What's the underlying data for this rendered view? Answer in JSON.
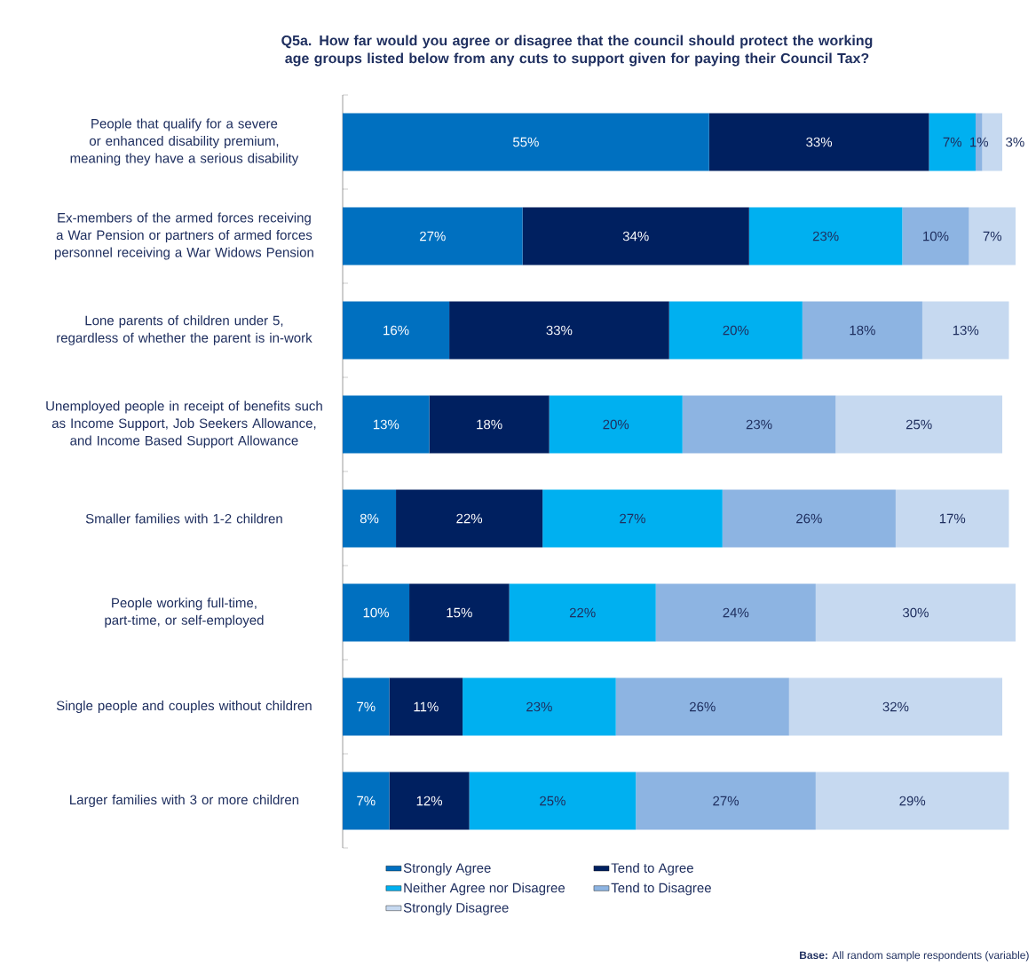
{
  "chart_data": {
    "type": "bar",
    "orientation": "horizontal",
    "stacked": true,
    "title": "Q5a. How far would you agree or disagree that the council should protect the working age groups listed below from any cuts to support given for paying their Council Tax?",
    "categories": [
      "People that qualify for a severe or enhanced disability premium, meaning they have a serious disability",
      "Ex-members of the armed forces receiving a War Pension or partners of armed forces personnel receiving a War Widows Pension",
      "Lone parents of children under 5, regardless of whether the parent is in-work",
      "Unemployed people in receipt of benefits such as Income Support, Job Seekers Allowance, and Income Based Support Allowance",
      "Smaller families with 1-2 children",
      "People working full-time, part-time, or self-employed",
      "Single people and couples without children",
      "Larger families with 3 or more children"
    ],
    "series": [
      {
        "name": "Strongly Agree",
        "color": "#0070c0",
        "values": [
          55,
          27,
          16,
          13,
          8,
          10,
          7,
          7
        ],
        "value_labels": [
          "55%",
          "27%",
          "16%",
          "13%",
          "8%",
          "10%",
          "7%",
          "7%"
        ]
      },
      {
        "name": "Tend to Agree",
        "color": "#002060",
        "values": [
          33,
          34,
          33,
          18,
          22,
          15,
          11,
          12
        ],
        "value_labels": [
          "33%",
          "34%",
          "33%",
          "18%",
          "22%",
          "15%",
          "11%",
          "12%"
        ]
      },
      {
        "name": "Neither Agree nor Disagree",
        "color": "#00b0f0",
        "values": [
          7,
          23,
          20,
          20,
          27,
          22,
          23,
          25
        ],
        "value_labels": [
          "7%",
          "23%",
          "20%",
          "20%",
          "27%",
          "22%",
          "23%",
          "25%"
        ]
      },
      {
        "name": "Tend to Disagree",
        "color": "#8db4e2",
        "values": [
          1,
          10,
          18,
          23,
          26,
          24,
          26,
          27
        ],
        "value_labels": [
          "1%",
          "10%",
          "18%",
          "23%",
          "26%",
          "24%",
          "26%",
          "27%"
        ]
      },
      {
        "name": "Strongly Disagree",
        "color": "#c6d9f0",
        "values": [
          3,
          7,
          13,
          25,
          17,
          30,
          32,
          29
        ],
        "value_labels": [
          "3%",
          "7%",
          "13%",
          "25%",
          "17%",
          "30%",
          "32%",
          "29%"
        ]
      }
    ],
    "legend": "bottom",
    "annotations": [
      "**Base:**  All random sample respondents (variable)"
    ]
  }
}
